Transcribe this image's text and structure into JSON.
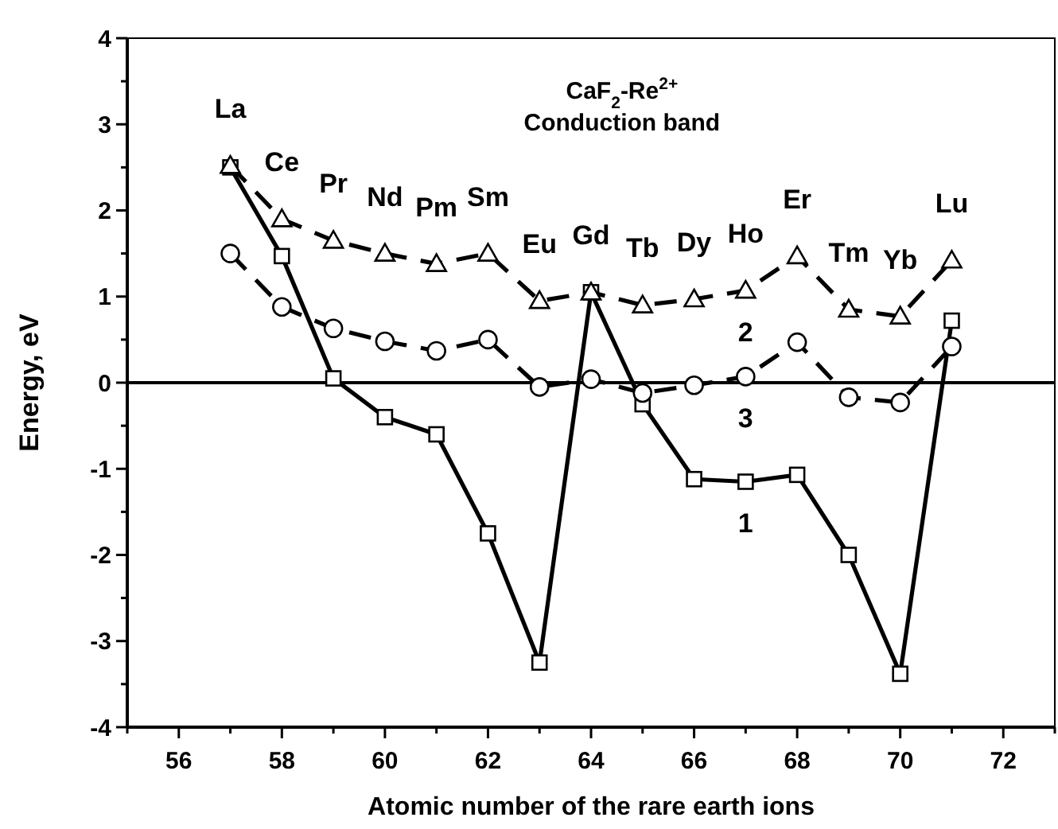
{
  "chart_data": {
    "type": "line",
    "title": "CaF$_{2}$-Re$^{2+}$",
    "subtitle": "Conduction band",
    "xlabel": "Atomic number of the rare earth ions",
    "ylabel": "Energy, eV",
    "x": [
      57,
      58,
      59,
      60,
      61,
      62,
      63,
      64,
      65,
      66,
      67,
      68,
      69,
      70,
      71
    ],
    "series": [
      {
        "name": "1",
        "color": "#000000",
        "marker": "square",
        "line_style": "solid",
        "values": [
          2.5,
          1.47,
          0.05,
          -0.4,
          -0.6,
          -1.75,
          -3.25,
          1.05,
          -0.25,
          -1.12,
          -1.15,
          -1.07,
          -2.0,
          -3.38,
          0.72
        ]
      },
      {
        "name": "2",
        "color": "#000000",
        "marker": "triangle",
        "line_style": "dashed",
        "values": [
          2.52,
          1.9,
          1.65,
          1.5,
          1.38,
          1.5,
          0.95,
          1.05,
          0.9,
          0.97,
          1.07,
          1.47,
          0.85,
          0.77,
          1.42
        ]
      },
      {
        "name": "3",
        "color": "#000000",
        "marker": "circle",
        "line_style": "dashed",
        "values": [
          1.5,
          0.88,
          0.63,
          0.48,
          0.37,
          0.5,
          -0.05,
          0.04,
          -0.12,
          -0.03,
          0.07,
          0.47,
          -0.17,
          -0.23,
          0.42
        ]
      }
    ],
    "xlim": [
      55,
      73
    ],
    "xticks": [
      {
        "value": 55,
        "label": null
      },
      56,
      {
        "value": 57,
        "label": null
      },
      58,
      {
        "value": 59,
        "label": null
      },
      60,
      {
        "value": 61,
        "label": null
      },
      62,
      {
        "value": 63,
        "label": null
      },
      64,
      {
        "value": 65,
        "label": null
      },
      66,
      {
        "value": 67,
        "label": null
      },
      68,
      {
        "value": 69,
        "label": null
      },
      70,
      {
        "value": 71,
        "label": null
      },
      72,
      {
        "value": 73,
        "label": null
      }
    ],
    "ylim": [
      -4,
      4
    ],
    "yticks": [
      -4,
      {
        "value": -3.5,
        "label": null
      },
      -3,
      {
        "value": -2.5,
        "label": null
      },
      -2,
      {
        "value": -1.5,
        "label": null
      },
      -1,
      {
        "value": -0.5,
        "label": null
      },
      0,
      {
        "value": 0.5,
        "label": null
      },
      1,
      {
        "value": 1.5,
        "label": null
      },
      2,
      {
        "value": 2.5,
        "label": null
      },
      3,
      {
        "value": 3.5,
        "label": null
      },
      4
    ],
    "ref_lines": [
      {
        "axis": "y",
        "value": 0,
        "color": "#000000",
        "line_style": "solid"
      }
    ],
    "grid": false,
    "annotations": [
      {
        "text": "La",
        "x": 57,
        "y": 2.52
      },
      {
        "text": "Ce",
        "x": 58,
        "y": 1.9
      },
      {
        "text": "Pr",
        "x": 59,
        "y": 1.65
      },
      {
        "text": "Nd",
        "x": 60,
        "y": 1.5
      },
      {
        "text": "Pm",
        "x": 61,
        "y": 1.38
      },
      {
        "text": "Sm",
        "x": 62,
        "y": 1.5
      },
      {
        "text": "Eu",
        "x": 63,
        "y": 0.95
      },
      {
        "text": "Gd",
        "x": 64,
        "y": 1.05
      },
      {
        "text": "Tb",
        "x": 65,
        "y": 0.9
      },
      {
        "text": "Dy",
        "x": 66,
        "y": 0.97
      },
      {
        "text": "Ho",
        "x": 67,
        "y": 1.07
      },
      {
        "text": "Er",
        "x": 68,
        "y": 1.47
      },
      {
        "text": "Tm",
        "x": 69,
        "y": 0.85
      },
      {
        "text": "Yb",
        "x": 70,
        "y": 0.77
      },
      {
        "text": "Lu",
        "x": 71,
        "y": 1.42
      }
    ]
  }
}
